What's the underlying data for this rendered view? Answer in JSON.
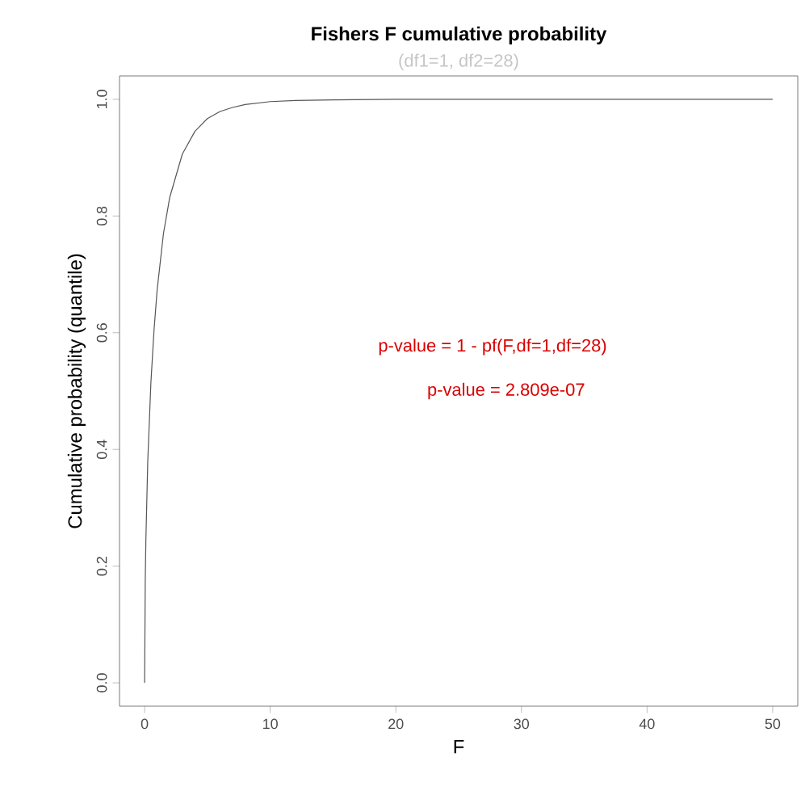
{
  "chart_data": {
    "type": "line",
    "title": "Fishers F cumulative probability",
    "subtitle": "(df1=1, df2=28)",
    "xlabel": "F",
    "ylabel": "Cumulative probability (quantile)",
    "annotations": [
      "p-value = 1 - pf(F,df=1,df=28)",
      "p-value = 2.809e-07"
    ],
    "xlim": [
      -2,
      52
    ],
    "ylim": [
      -0.04,
      1.04
    ],
    "xticks": [
      0,
      10,
      20,
      30,
      40,
      50
    ],
    "yticks": [
      {
        "value": 0,
        "label": "0.0"
      },
      {
        "value": 0.2,
        "label": "0.2"
      },
      {
        "value": 0.4,
        "label": "0.4"
      },
      {
        "value": 0.6,
        "label": "0.6"
      },
      {
        "value": 0.8,
        "label": "0.8"
      },
      {
        "value": 1,
        "label": "1.0"
      }
    ],
    "grid": false,
    "marker": "none",
    "line_style": "solid",
    "series": [
      {
        "color": "#555555",
        "x": [
          0,
          0.05,
          0.1,
          0.25,
          0.5,
          0.75,
          1,
          1.5,
          2,
          3,
          4,
          5,
          6,
          7,
          8,
          10,
          12,
          15,
          20,
          30,
          40,
          50
        ],
        "values": [
          0,
          0.175,
          0.245,
          0.38,
          0.515,
          0.605,
          0.674,
          0.77,
          0.832,
          0.906,
          0.945,
          0.967,
          0.979,
          0.986,
          0.991,
          0.996,
          0.998,
          0.999,
          1,
          1,
          1,
          1
        ]
      }
    ]
  }
}
